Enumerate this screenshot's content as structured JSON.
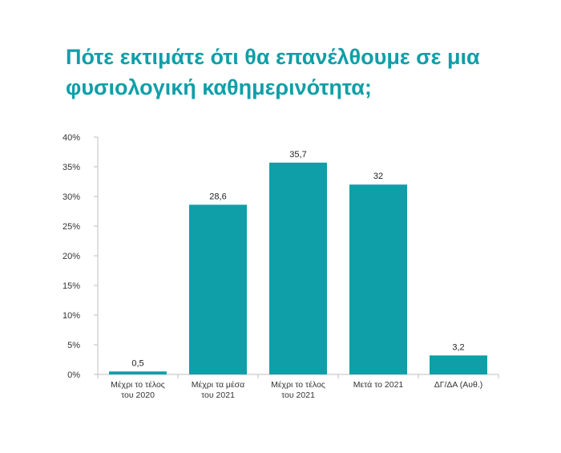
{
  "title_lines": [
    "Πότε εκτιμάτε ότι θα επανέλθουμε σε μια",
    "φυσιολογική καθημερινότητα;"
  ],
  "colors": {
    "bar": "#0f9fa8",
    "title": "#0f9fa8",
    "axis": "#bfbfbf"
  },
  "chart_data": {
    "type": "bar",
    "title": "Πότε εκτιμάτε ότι θα επανέλθουμε σε μια φυσιολογική καθημερινότητα;",
    "categories": [
      [
        "Μέχρι το τέλος",
        "του 2020"
      ],
      [
        "Μέχρι τα μέσα",
        "του 2021"
      ],
      [
        "Μέχρι το τέλος",
        "του 2021"
      ],
      [
        "Μετά το 2021"
      ],
      [
        "ΔΓ/ΔΑ (Αυθ.)"
      ]
    ],
    "values": [
      0.5,
      28.6,
      35.7,
      32,
      3.2
    ],
    "data_labels": [
      "0,5",
      "28,6",
      "35,7",
      "32",
      "3,2"
    ],
    "ylim": [
      0,
      40
    ],
    "yticks": [
      0,
      5,
      10,
      15,
      20,
      25,
      30,
      35,
      40
    ],
    "ytick_labels": [
      "0%",
      "5%",
      "10%",
      "15%",
      "20%",
      "25%",
      "30%",
      "35%",
      "40%"
    ],
    "xlabel": "",
    "ylabel": "",
    "grid": false,
    "legend": "none"
  }
}
